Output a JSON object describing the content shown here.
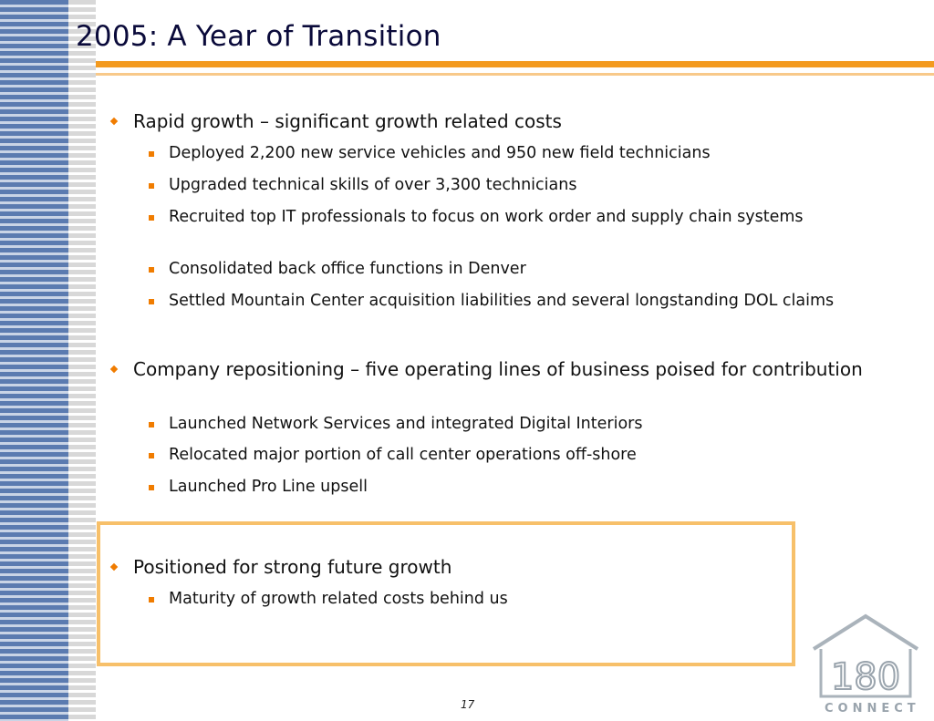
{
  "slide": {
    "title": "2005: A Year of Transition",
    "page_number": "17"
  },
  "sections": [
    {
      "heading": "Rapid growth – significant growth related costs",
      "items": [
        "Deployed 2,200 new service vehicles and 950 new field technicians",
        "Upgraded technical skills of over 3,300 technicians",
        "Recruited top IT professionals to focus on work order and supply chain systems",
        "Consolidated back office functions in Denver",
        "Settled Mountain Center acquisition liabilities and several longstanding DOL claims"
      ]
    },
    {
      "heading": "Company repositioning – five operating lines of business poised for contribution",
      "items": [
        "Launched Network Services and integrated Digital Interiors",
        "Relocated major portion of call center operations off-shore",
        "Launched Pro Line upsell"
      ]
    },
    {
      "heading": "Positioned for strong future growth",
      "items": [
        "Maturity of growth related costs behind us"
      ]
    }
  ],
  "logo": {
    "number": "180",
    "word": "CONNECT"
  },
  "colors": {
    "accent": "#f39a1f",
    "bullet": "#f07c00",
    "stripe_blue": "#5b7bb0",
    "callout_border": "#f7c06a"
  }
}
